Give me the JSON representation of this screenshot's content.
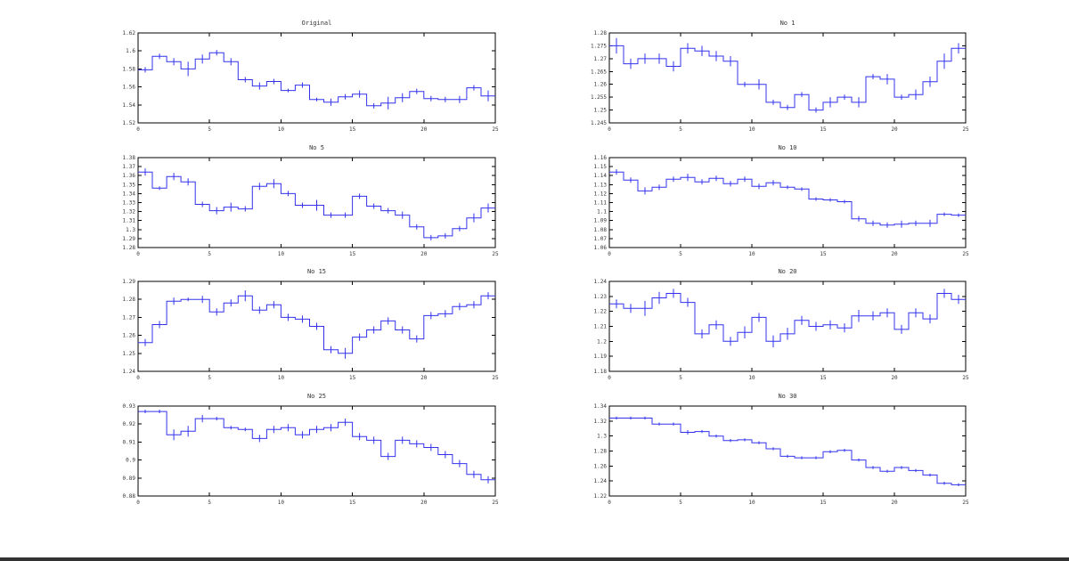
{
  "colors": {
    "line": "#3333ee",
    "axis": "#000000",
    "text": "#333333",
    "background": "#ffffff"
  },
  "chart_data": [
    {
      "type": "line",
      "style": "step-with-errorbars",
      "title": "Original",
      "xlim": [
        0,
        25
      ],
      "ylim": [
        1.52,
        1.62
      ],
      "xticks": [
        0,
        5,
        10,
        15,
        20,
        25
      ],
      "xtick_labels": [
        "0",
        "5",
        "10",
        "15",
        "20",
        "25"
      ],
      "yticks": [
        1.52,
        1.54,
        1.56,
        1.58,
        1.6,
        1.62
      ],
      "ytick_labels": [
        "1.52",
        "1.54",
        "1.56",
        "1.58",
        "1.6",
        "1.62"
      ],
      "grid": false,
      "x": [
        1,
        2,
        3,
        4,
        5,
        6,
        7,
        8,
        9,
        10,
        11,
        12,
        13,
        14,
        15,
        16,
        17,
        18,
        19,
        20,
        21,
        22,
        23,
        24,
        25
      ],
      "values": [
        1.579,
        1.594,
        1.588,
        1.58,
        1.591,
        1.598,
        1.588,
        1.568,
        1.561,
        1.566,
        1.556,
        1.562,
        1.546,
        1.543,
        1.549,
        1.552,
        1.539,
        1.542,
        1.548,
        1.555,
        1.547,
        1.546,
        1.546,
        1.559,
        1.55
      ],
      "err": [
        0.003,
        0.003,
        0.004,
        0.008,
        0.005,
        0.003,
        0.004,
        0.003,
        0.004,
        0.003,
        0.002,
        0.003,
        0.002,
        0.004,
        0.003,
        0.004,
        0.003,
        0.007,
        0.005,
        0.003,
        0.003,
        0.003,
        0.004,
        0.003,
        0.006
      ]
    },
    {
      "type": "line",
      "style": "step-with-errorbars",
      "title": "No 1",
      "xlim": [
        0,
        25
      ],
      "ylim": [
        1.245,
        1.28
      ],
      "xticks": [
        0,
        5,
        10,
        15,
        20,
        25
      ],
      "xtick_labels": [
        "0",
        "5",
        "10",
        "15",
        "20",
        "25"
      ],
      "yticks": [
        1.245,
        1.25,
        1.255,
        1.26,
        1.265,
        1.27,
        1.275,
        1.28
      ],
      "ytick_labels": [
        "1.245",
        "1.25",
        "1.255",
        "1.26",
        "1.265",
        "1.27",
        "1.275",
        "1.28"
      ],
      "grid": false,
      "x": [
        1,
        2,
        3,
        4,
        5,
        6,
        7,
        8,
        9,
        10,
        11,
        12,
        13,
        14,
        15,
        16,
        17,
        18,
        19,
        20,
        21,
        22,
        23,
        24,
        25
      ],
      "values": [
        1.275,
        1.268,
        1.27,
        1.27,
        1.267,
        1.274,
        1.273,
        1.271,
        1.269,
        1.26,
        1.26,
        1.253,
        1.251,
        1.256,
        1.25,
        1.253,
        1.255,
        1.253,
        1.263,
        1.262,
        1.255,
        1.256,
        1.261,
        1.269,
        1.274
      ],
      "err": [
        0.003,
        0.002,
        0.002,
        0.002,
        0.002,
        0.002,
        0.002,
        0.002,
        0.002,
        0.001,
        0.002,
        0.001,
        0.001,
        0.001,
        0.001,
        0.002,
        0.001,
        0.002,
        0.001,
        0.002,
        0.001,
        0.002,
        0.002,
        0.003,
        0.002
      ]
    },
    {
      "type": "line",
      "style": "step-with-errorbars",
      "title": "No 5",
      "xlim": [
        0,
        25
      ],
      "ylim": [
        1.28,
        1.38
      ],
      "xticks": [
        0,
        5,
        10,
        15,
        20,
        25
      ],
      "xtick_labels": [
        "0",
        "5",
        "10",
        "15",
        "20",
        "25"
      ],
      "yticks": [
        1.28,
        1.29,
        1.3,
        1.31,
        1.32,
        1.33,
        1.34,
        1.35,
        1.36,
        1.37,
        1.38
      ],
      "ytick_labels": [
        "1.28",
        "1.29",
        "1.3",
        "1.31",
        "1.32",
        "1.33",
        "1.34",
        "1.35",
        "1.36",
        "1.37",
        "1.38"
      ],
      "grid": false,
      "x": [
        1,
        2,
        3,
        4,
        5,
        6,
        7,
        8,
        9,
        10,
        11,
        12,
        13,
        14,
        15,
        16,
        17,
        18,
        19,
        20,
        21,
        22,
        23,
        24,
        25
      ],
      "values": [
        1.364,
        1.346,
        1.359,
        1.353,
        1.328,
        1.321,
        1.325,
        1.323,
        1.348,
        1.351,
        1.34,
        1.327,
        1.327,
        1.316,
        1.316,
        1.337,
        1.326,
        1.321,
        1.316,
        1.303,
        1.291,
        1.293,
        1.301,
        1.313,
        1.324
      ],
      "err": [
        0.004,
        0.002,
        0.004,
        0.004,
        0.003,
        0.004,
        0.005,
        0.003,
        0.004,
        0.005,
        0.003,
        0.003,
        0.006,
        0.003,
        0.003,
        0.003,
        0.003,
        0.003,
        0.004,
        0.003,
        0.003,
        0.003,
        0.003,
        0.005,
        0.005
      ]
    },
    {
      "type": "line",
      "style": "step-with-errorbars",
      "title": "No 10",
      "xlim": [
        0,
        25
      ],
      "ylim": [
        1.06,
        1.16
      ],
      "xticks": [
        0,
        5,
        10,
        15,
        20,
        25
      ],
      "xtick_labels": [
        "0",
        "5",
        "10",
        "15",
        "20",
        "25"
      ],
      "yticks": [
        1.06,
        1.07,
        1.08,
        1.09,
        1.1,
        1.11,
        1.12,
        1.13,
        1.14,
        1.15,
        1.16
      ],
      "ytick_labels": [
        "1.06",
        "1.07",
        "1.08",
        "1.09",
        "1.1",
        "1.11",
        "1.12",
        "1.13",
        "1.14",
        "1.15",
        "1.16"
      ],
      "grid": false,
      "x": [
        1,
        2,
        3,
        4,
        5,
        6,
        7,
        8,
        9,
        10,
        11,
        12,
        13,
        14,
        15,
        16,
        17,
        18,
        19,
        20,
        21,
        22,
        23,
        24,
        25
      ],
      "values": [
        1.144,
        1.135,
        1.123,
        1.127,
        1.136,
        1.138,
        1.133,
        1.137,
        1.131,
        1.136,
        1.128,
        1.132,
        1.127,
        1.125,
        1.114,
        1.113,
        1.111,
        1.092,
        1.087,
        1.085,
        1.086,
        1.087,
        1.087,
        1.097,
        1.096
      ],
      "err": [
        0.003,
        0.003,
        0.004,
        0.003,
        0.003,
        0.004,
        0.003,
        0.003,
        0.003,
        0.003,
        0.003,
        0.003,
        0.002,
        0.002,
        0.002,
        0.002,
        0.002,
        0.003,
        0.003,
        0.003,
        0.004,
        0.003,
        0.004,
        0.002,
        0.002
      ]
    },
    {
      "type": "line",
      "style": "step-with-errorbars",
      "title": "No 15",
      "xlim": [
        0,
        25
      ],
      "ylim": [
        1.24,
        1.29
      ],
      "xticks": [
        0,
        5,
        10,
        15,
        20,
        25
      ],
      "xtick_labels": [
        "0",
        "5",
        "10",
        "15",
        "20",
        "25"
      ],
      "yticks": [
        1.24,
        1.25,
        1.26,
        1.27,
        1.28,
        1.29
      ],
      "ytick_labels": [
        "1.24",
        "1.25",
        "1.26",
        "1.27",
        "1.28",
        "1.29"
      ],
      "grid": false,
      "x": [
        1,
        2,
        3,
        4,
        5,
        6,
        7,
        8,
        9,
        10,
        11,
        12,
        13,
        14,
        15,
        16,
        17,
        18,
        19,
        20,
        21,
        22,
        23,
        24,
        25
      ],
      "values": [
        1.256,
        1.266,
        1.279,
        1.28,
        1.28,
        1.273,
        1.278,
        1.282,
        1.274,
        1.277,
        1.27,
        1.269,
        1.265,
        1.252,
        1.25,
        1.259,
        1.263,
        1.268,
        1.263,
        1.258,
        1.271,
        1.272,
        1.276,
        1.277,
        1.282
      ],
      "err": [
        0.002,
        0.002,
        0.002,
        0.001,
        0.002,
        0.002,
        0.002,
        0.003,
        0.002,
        0.002,
        0.002,
        0.002,
        0.002,
        0.002,
        0.003,
        0.002,
        0.002,
        0.002,
        0.002,
        0.002,
        0.002,
        0.002,
        0.002,
        0.002,
        0.002
      ]
    },
    {
      "type": "line",
      "style": "step-with-errorbars",
      "title": "No 20",
      "xlim": [
        0,
        25
      ],
      "ylim": [
        1.18,
        1.24
      ],
      "xticks": [
        0,
        5,
        10,
        15,
        20,
        25
      ],
      "xtick_labels": [
        "0",
        "5",
        "10",
        "15",
        "20",
        "25"
      ],
      "yticks": [
        1.18,
        1.19,
        1.2,
        1.21,
        1.22,
        1.23,
        1.24
      ],
      "ytick_labels": [
        "1.18",
        "1.19",
        "1.2",
        "1.21",
        "1.22",
        "1.23",
        "1.24"
      ],
      "grid": false,
      "x": [
        1,
        2,
        3,
        4,
        5,
        6,
        7,
        8,
        9,
        10,
        11,
        12,
        13,
        14,
        15,
        16,
        17,
        18,
        19,
        20,
        21,
        22,
        23,
        24,
        25
      ],
      "values": [
        1.225,
        1.222,
        1.222,
        1.229,
        1.232,
        1.226,
        1.205,
        1.211,
        1.2,
        1.206,
        1.216,
        1.2,
        1.205,
        1.214,
        1.21,
        1.211,
        1.209,
        1.217,
        1.217,
        1.219,
        1.208,
        1.219,
        1.215,
        1.232,
        1.228
      ],
      "err": [
        0.003,
        0.003,
        0.005,
        0.004,
        0.003,
        0.003,
        0.003,
        0.003,
        0.003,
        0.004,
        0.003,
        0.004,
        0.004,
        0.003,
        0.003,
        0.003,
        0.003,
        0.004,
        0.003,
        0.003,
        0.003,
        0.003,
        0.003,
        0.003,
        0.003
      ]
    },
    {
      "type": "line",
      "style": "step-with-errorbars",
      "title": "No 25",
      "xlim": [
        0,
        25
      ],
      "ylim": [
        0.88,
        0.93
      ],
      "xticks": [
        0,
        5,
        10,
        15,
        20,
        25
      ],
      "xtick_labels": [
        "0",
        "5",
        "10",
        "15",
        "20",
        "25"
      ],
      "yticks": [
        0.88,
        0.89,
        0.9,
        0.91,
        0.92,
        0.93
      ],
      "ytick_labels": [
        "0.88",
        "0.89",
        "0.9",
        "0.91",
        "0.92",
        "0.93"
      ],
      "grid": false,
      "x": [
        1,
        2,
        3,
        4,
        5,
        6,
        7,
        8,
        9,
        10,
        11,
        12,
        13,
        14,
        15,
        16,
        17,
        18,
        19,
        20,
        21,
        22,
        23,
        24,
        25
      ],
      "values": [
        0.927,
        0.927,
        0.914,
        0.916,
        0.923,
        0.923,
        0.918,
        0.917,
        0.912,
        0.917,
        0.918,
        0.914,
        0.917,
        0.918,
        0.921,
        0.913,
        0.911,
        0.902,
        0.911,
        0.909,
        0.907,
        0.903,
        0.898,
        0.892,
        0.889
      ],
      "err": [
        0.001,
        0.001,
        0.003,
        0.003,
        0.002,
        0.001,
        0.001,
        0.001,
        0.002,
        0.002,
        0.002,
        0.002,
        0.002,
        0.002,
        0.002,
        0.002,
        0.002,
        0.002,
        0.002,
        0.002,
        0.002,
        0.002,
        0.002,
        0.002,
        0.002
      ]
    },
    {
      "type": "line",
      "style": "step-with-errorbars",
      "title": "No 30",
      "xlim": [
        0,
        25
      ],
      "ylim": [
        1.22,
        1.34
      ],
      "xticks": [
        0,
        5,
        10,
        15,
        20,
        25
      ],
      "xtick_labels": [
        "0",
        "5",
        "10",
        "15",
        "20",
        "25"
      ],
      "yticks": [
        1.22,
        1.24,
        1.26,
        1.28,
        1.3,
        1.32,
        1.34
      ],
      "ytick_labels": [
        "1.22",
        "1.24",
        "1.26",
        "1.28",
        "1.3",
        "1.32",
        "1.34"
      ],
      "grid": false,
      "x": [
        1,
        2,
        3,
        4,
        5,
        6,
        7,
        8,
        9,
        10,
        11,
        12,
        13,
        14,
        15,
        16,
        17,
        18,
        19,
        20,
        21,
        22,
        23,
        24,
        25
      ],
      "values": [
        1.324,
        1.324,
        1.324,
        1.316,
        1.316,
        1.305,
        1.306,
        1.3,
        1.294,
        1.295,
        1.291,
        1.283,
        1.273,
        1.271,
        1.271,
        1.279,
        1.281,
        1.268,
        1.258,
        1.253,
        1.258,
        1.254,
        1.248,
        1.237,
        1.235
      ],
      "err": [
        0.002,
        0.002,
        0.002,
        0.002,
        0.002,
        0.003,
        0.002,
        0.002,
        0.002,
        0.002,
        0.002,
        0.002,
        0.002,
        0.002,
        0.002,
        0.002,
        0.002,
        0.002,
        0.002,
        0.002,
        0.002,
        0.002,
        0.002,
        0.002,
        0.002
      ]
    }
  ]
}
